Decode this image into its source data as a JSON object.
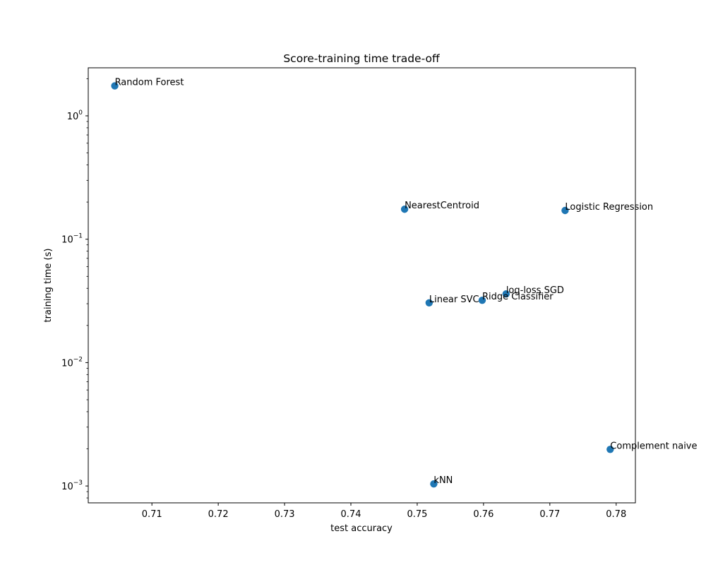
{
  "chart_data": {
    "type": "scatter",
    "title": "Score-training time trade-off",
    "xlabel": "test accuracy",
    "ylabel": "training time (s)",
    "xlim": [
      0.7004,
      0.7829
    ],
    "ylim": [
      0.00073,
      2.45
    ],
    "yscale": "log",
    "grid": false,
    "color": "#1f77b4",
    "xticks": [
      "0.71",
      "0.72",
      "0.73",
      "0.74",
      "0.75",
      "0.76",
      "0.77",
      "0.78"
    ],
    "xtick_values": [
      0.71,
      0.72,
      0.73,
      0.74,
      0.75,
      0.76,
      0.77,
      0.78
    ],
    "ytick_values": [
      0.001,
      0.01,
      0.1,
      1
    ],
    "ytick_exponents": [
      "−3",
      "−2",
      "−1",
      "0"
    ],
    "ytick_base": "10",
    "points": [
      {
        "label": "Random Forest",
        "x": 0.7044,
        "y": 1.75
      },
      {
        "label": "NearestCentroid",
        "x": 0.7481,
        "y": 0.175
      },
      {
        "label": "Logistic Regression",
        "x": 0.7723,
        "y": 0.171
      },
      {
        "label": "log-loss SGD",
        "x": 0.7634,
        "y": 0.036
      },
      {
        "label": "Ridge Classifier",
        "x": 0.7598,
        "y": 0.032
      },
      {
        "label": "Linear SVC",
        "x": 0.7518,
        "y": 0.0305
      },
      {
        "label": "Complement naive",
        "x": 0.7791,
        "y": 0.00198
      },
      {
        "label": "kNN",
        "x": 0.7525,
        "y": 0.00104
      }
    ]
  }
}
